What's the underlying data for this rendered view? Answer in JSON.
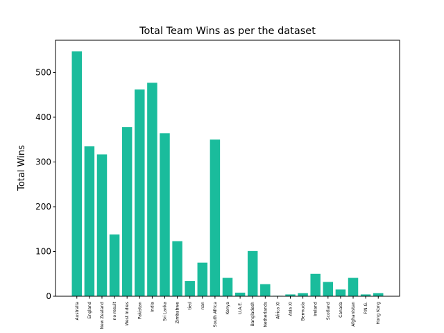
{
  "chart_data": {
    "type": "bar",
    "title": "Total Team Wins as per the dataset",
    "xlabel": "",
    "ylabel": "Total Wins",
    "ylim": [
      0,
      572
    ],
    "yticks": [
      0,
      100,
      200,
      300,
      400,
      500
    ],
    "bar_color": "#1abc9c",
    "grid": false,
    "categories": [
      "Australia",
      "England",
      "New Zealand",
      "no result",
      "West Indies",
      "Pakistan",
      "India",
      "Sri Lanka",
      "Zimbabwe",
      "tied",
      "nan",
      "South Africa",
      "Kenya",
      "U.A.E.",
      "Bangladesh",
      "Netherlands",
      "Africa XI",
      "Asia XI",
      "Bermuda",
      "Ireland",
      "Scotland",
      "Canada",
      "Afghanistan",
      "P.N.G.",
      "Hong Kong"
    ],
    "values": [
      547,
      335,
      317,
      138,
      378,
      462,
      477,
      364,
      123,
      34,
      75,
      350,
      41,
      8,
      101,
      27,
      1,
      4,
      7,
      50,
      32,
      15,
      41,
      4,
      7
    ]
  }
}
